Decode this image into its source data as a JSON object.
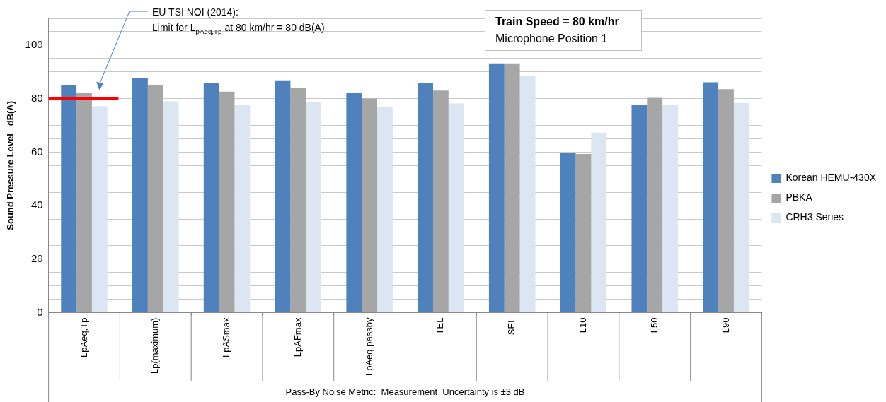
{
  "chart_data": {
    "type": "bar",
    "ylabel": "Sound Pressure Level   dB(A)",
    "xlabel": "Pass-By Noise Metric:  Measurement  Uncertainty is ±3 dB",
    "categories": [
      "LpAeq,Tp",
      "Lp(maximum)",
      "LpASmax",
      "LpAFmax",
      "LpAeq,passby",
      "TEL",
      "SEL",
      "L10",
      "L50",
      "L90"
    ],
    "series": [
      {
        "name": "Korean HEMU-430X",
        "color": "#4f81bd",
        "values": [
          85,
          87.8,
          85.8,
          86.8,
          82.3,
          86,
          93.2,
          59.7,
          77.8,
          86.1
        ]
      },
      {
        "name": "PBKA",
        "color": "#a6a6a6",
        "values": [
          82.2,
          85,
          82.6,
          84,
          80,
          83,
          93.2,
          59.3,
          80.3,
          83.5
        ]
      },
      {
        "name": "CRH3 Series",
        "color": "#dce6f2",
        "values": [
          77.2,
          79,
          77.8,
          78.7,
          77,
          78.2,
          88.5,
          67.3,
          77.6,
          78.4
        ]
      }
    ],
    "ylim": [
      0,
      110
    ],
    "yticks": [
      0,
      {
        "value": 5,
        "label": null
      },
      {
        "value": 10,
        "label": null
      },
      {
        "value": 15,
        "label": null
      },
      20,
      {
        "value": 25,
        "label": null
      },
      {
        "value": 30,
        "label": null
      },
      {
        "value": 35,
        "label": null
      },
      40,
      {
        "value": 45,
        "label": null
      },
      {
        "value": 50,
        "label": null
      },
      {
        "value": 55,
        "label": null
      },
      60,
      {
        "value": 65,
        "label": null
      },
      {
        "value": 70,
        "label": null
      },
      {
        "value": 75,
        "label": null
      },
      80,
      {
        "value": 85,
        "label": null
      },
      {
        "value": 90,
        "label": null
      },
      {
        "value": 95,
        "label": null
      },
      100,
      {
        "value": 105,
        "label": null
      },
      {
        "value": 110,
        "label": null
      }
    ],
    "grid": "y",
    "legend": "right",
    "ref_lines": [
      {
        "axis": "y",
        "value": 80,
        "color": "#ff0000"
      }
    ],
    "annotations": [
      "Train Speed = 80 km/hr",
      "Microphone Position 1",
      "EU TSI NOI (2014):\nLimit for L$_{pAeq,Tp}$ at 80 km/hr = 80 dB(A)"
    ]
  }
}
